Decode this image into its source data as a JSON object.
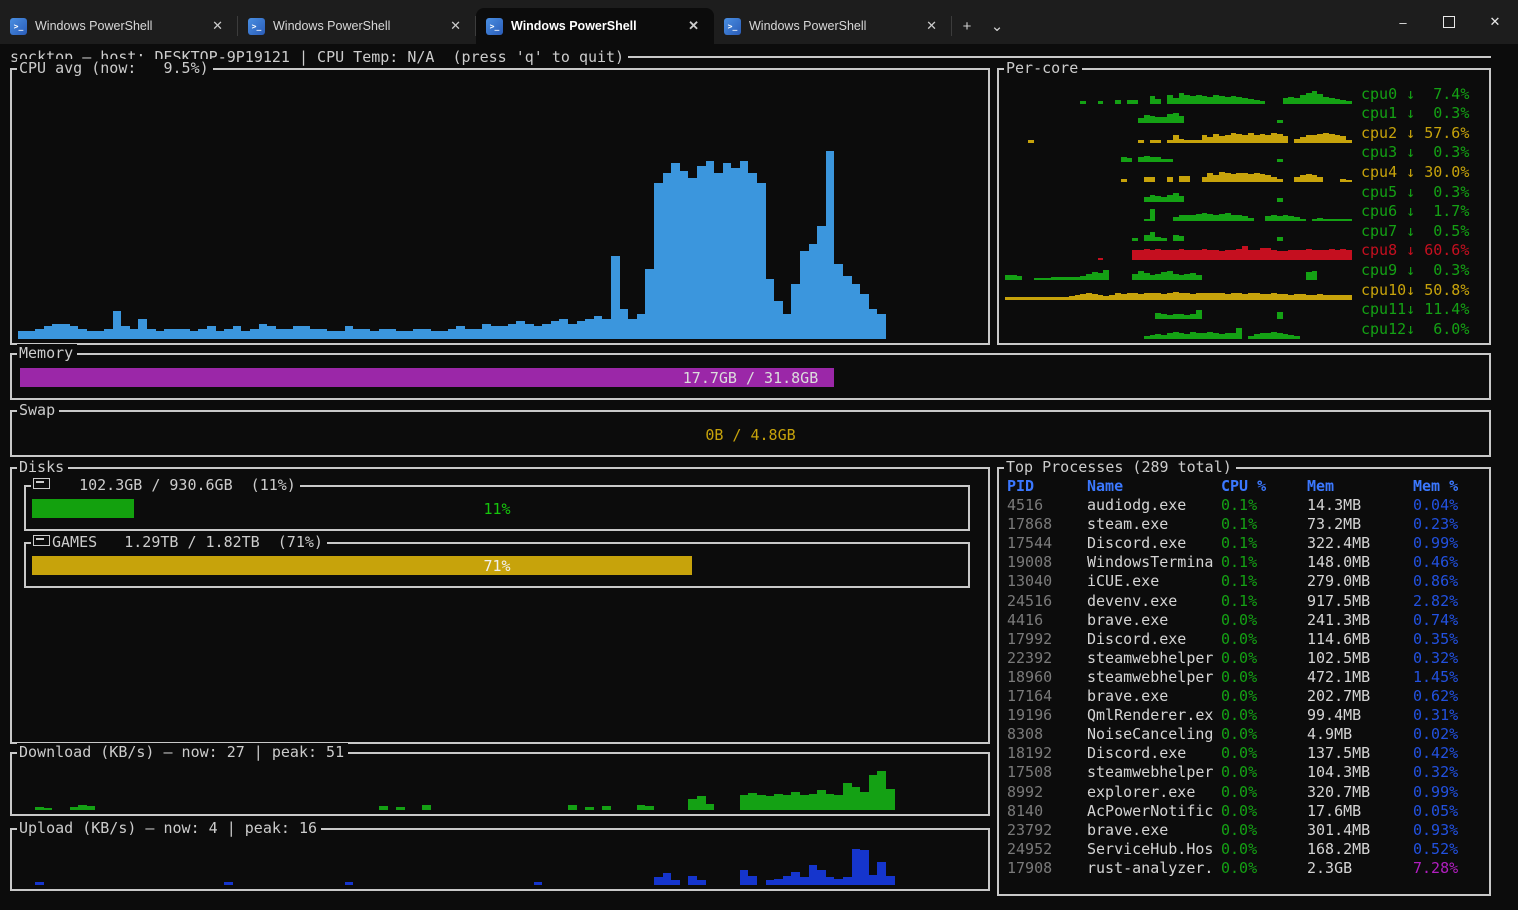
{
  "colors": {
    "frame": "#c9c9c9",
    "text": "#cccccc",
    "green": "#14a114",
    "yellow": "#c7a30b",
    "red": "#c50f1f",
    "cpu_blue": "#3b96dd",
    "upload_blue": "#1535cd",
    "header_blue": "#3b78ff",
    "memp_blue": "#2251e0",
    "magenta": "#b21fc0",
    "pid_gray": "#7a7a7a",
    "name_white": "#d4d4d4",
    "purple": "#9b27a8",
    "bright_green": "#16c60c",
    "white": "#f0f0f0"
  },
  "window": {
    "icons": {
      "minimize": "–",
      "close": "✕",
      "new_tab": "+",
      "dropdown": "⌄",
      "tab_close": "✕",
      "ps_glyph": ">_"
    }
  },
  "tabs": [
    {
      "label": "Windows PowerShell",
      "active": false
    },
    {
      "label": "Windows PowerShell",
      "active": false
    },
    {
      "label": "Windows PowerShell",
      "active": true
    },
    {
      "label": "Windows PowerShell",
      "active": false
    }
  ],
  "header": {
    "text": "socktop — host: DESKTOP-9P19121 | CPU Temp: N/A  (press 'q' to quit)"
  },
  "cpu_avg": {
    "title": "CPU avg (now:   9.5%)",
    "color": "#3b96dd",
    "max": 100,
    "slots": 112,
    "min": 2.2,
    "align": "left",
    "values": [
      3,
      3,
      4,
      5,
      6,
      6,
      5,
      4,
      3,
      3,
      4,
      11,
      5,
      4,
      8,
      4,
      3,
      4,
      4,
      4,
      3,
      4,
      5,
      3,
      4,
      5,
      3,
      4,
      6,
      5,
      4,
      4,
      5,
      5,
      4,
      4,
      3,
      3,
      5,
      4,
      4,
      3,
      4,
      4,
      3,
      3,
      4,
      4,
      3,
      3,
      4,
      5,
      4,
      4,
      6,
      5,
      5,
      6,
      7,
      6,
      5,
      6,
      7,
      8,
      6,
      7,
      8,
      9,
      8,
      33,
      12,
      8,
      10,
      28,
      62,
      66,
      70,
      67,
      64,
      69,
      71,
      66,
      70,
      68,
      71,
      66,
      62,
      24,
      15,
      10,
      22,
      35,
      38,
      45,
      75,
      30,
      25,
      22,
      18,
      12,
      10,
      0,
      0,
      0,
      0,
      0,
      0,
      0,
      0,
      0,
      0,
      0
    ]
  },
  "percore": {
    "title": "Per-core",
    "cores": [
      {
        "label": "cpu0 ↓  7.4%",
        "color": "green",
        "values": [
          0,
          14,
          0,
          0,
          12,
          0,
          0,
          18,
          0,
          16,
          16,
          0,
          0,
          38,
          22,
          0,
          45,
          30,
          55,
          42,
          38,
          45,
          40,
          36,
          42,
          38,
          34,
          40,
          36,
          30,
          26,
          20,
          14,
          0,
          0,
          0,
          30,
          36,
          30,
          44,
          55,
          62,
          48,
          36,
          30,
          24,
          18,
          14
        ]
      },
      {
        "label": "cpu1 ↓  0.3%",
        "color": "green",
        "values": [
          0,
          0,
          0,
          0,
          0,
          0,
          0,
          0,
          0,
          0,
          0,
          0,
          0,
          0,
          0,
          0,
          0,
          0,
          0,
          0,
          0,
          0,
          0,
          25,
          42,
          35,
          30,
          30,
          48,
          52,
          38,
          0,
          0,
          0,
          0,
          0,
          0,
          0,
          0,
          0,
          0,
          0,
          0,
          0,
          0,
          0,
          0,
          18,
          0,
          0,
          0,
          0,
          0,
          0,
          0,
          0,
          0,
          0,
          0,
          0
        ]
      },
      {
        "label": "cpu2 ↓ 57.6%",
        "color": "yellow",
        "values": [
          10,
          0,
          0,
          0,
          0,
          0,
          0,
          0,
          0,
          0,
          0,
          0,
          0,
          0,
          0,
          0,
          0,
          0,
          0,
          14,
          0,
          12,
          12,
          0,
          14,
          38,
          22,
          16,
          12,
          12,
          40,
          28,
          45,
          36,
          42,
          50,
          44,
          38,
          48,
          42,
          45,
          40,
          50,
          44,
          34,
          0,
          22,
          30,
          38,
          42,
          46,
          50,
          45,
          40,
          36,
          14
        ]
      },
      {
        "label": "cpu3 ↓  0.3%",
        "color": "green",
        "values": [
          0,
          0,
          0,
          0,
          0,
          0,
          0,
          0,
          0,
          0,
          0,
          0,
          0,
          0,
          0,
          0,
          0,
          0,
          0,
          0,
          30,
          22,
          0,
          26,
          32,
          30,
          26,
          20,
          16,
          0,
          0,
          0,
          0,
          0,
          0,
          0,
          0,
          0,
          0,
          0,
          0,
          0,
          0,
          0,
          0,
          0,
          0,
          16,
          0,
          0,
          0,
          0,
          0,
          0,
          0,
          0,
          0,
          0,
          0,
          0
        ]
      },
      {
        "label": "cpu4 ↓ 30.0%",
        "color": "yellow",
        "values": [
          0,
          16,
          0,
          0,
          0,
          28,
          28,
          0,
          0,
          24,
          0,
          32,
          32,
          0,
          0,
          28,
          44,
          38,
          50,
          44,
          40,
          46,
          44,
          40,
          44,
          40,
          36,
          28,
          14,
          0,
          0,
          24,
          34,
          40,
          36,
          28,
          0,
          0,
          0,
          18,
          10
        ]
      },
      {
        "label": "cpu5 ↓  0.3%",
        "color": "green",
        "values": [
          0,
          0,
          0,
          0,
          0,
          0,
          0,
          0,
          0,
          0,
          0,
          0,
          0,
          0,
          0,
          0,
          0,
          0,
          0,
          0,
          0,
          0,
          0,
          0,
          26,
          36,
          30,
          26,
          36,
          42,
          30,
          0,
          0,
          0,
          0,
          0,
          0,
          0,
          0,
          0,
          0,
          0,
          0,
          0,
          0,
          0,
          0,
          18,
          0,
          0,
          0,
          0,
          0,
          0,
          0,
          0,
          0,
          0,
          0,
          0
        ]
      },
      {
        "label": "cpu6 ↓  1.7%",
        "color": "green",
        "values": [
          14,
          62,
          0,
          0,
          0,
          22,
          30,
          34,
          30,
          36,
          40,
          36,
          34,
          38,
          40,
          34,
          30,
          26,
          16,
          0,
          0,
          26,
          30,
          28,
          30,
          26,
          20,
          14,
          0,
          12,
          16,
          12,
          10,
          14,
          12,
          10
        ]
      },
      {
        "label": "cpu7 ↓  0.5%",
        "color": "green",
        "values": [
          0,
          0,
          0,
          0,
          0,
          0,
          0,
          0,
          0,
          0,
          0,
          0,
          0,
          0,
          0,
          0,
          0,
          0,
          0,
          0,
          0,
          0,
          14,
          0,
          30,
          44,
          22,
          14,
          0,
          32,
          26,
          0,
          0,
          0,
          0,
          0,
          0,
          0,
          0,
          0,
          0,
          0,
          0,
          0,
          0,
          0,
          0,
          18,
          0,
          0,
          0,
          0,
          0,
          0,
          0,
          0,
          0,
          0,
          0,
          0
        ]
      },
      {
        "label": "cpu8 ↓ 60.6%",
        "color": "red",
        "values": [
          12,
          0,
          0,
          0,
          0,
          0,
          52,
          56,
          60,
          56,
          58,
          54,
          52,
          56,
          60,
          55,
          52,
          56,
          58,
          54,
          52,
          50,
          56,
          52,
          58,
          72,
          56,
          52,
          62,
          66,
          56,
          50,
          46,
          56,
          52,
          55,
          58,
          54,
          56,
          52,
          58,
          55,
          60,
          56
        ]
      },
      {
        "label": "cpu9 ↓  0.3%",
        "color": "green",
        "values": [
          26,
          26,
          22,
          0,
          0,
          12,
          12,
          12,
          14,
          14,
          14,
          16,
          16,
          22,
          32,
          42,
          35,
          52,
          0,
          0,
          0,
          0,
          30,
          46,
          36,
          26,
          30,
          42,
          46,
          30,
          26,
          32,
          36,
          28,
          0,
          0,
          0,
          0,
          0,
          0,
          0,
          0,
          0,
          0,
          0,
          0,
          0,
          0,
          0,
          0,
          0,
          0,
          42,
          48,
          0,
          0,
          0,
          0,
          0,
          0
        ]
      },
      {
        "label": "cpu10↓ 50.8%",
        "color": "yellow",
        "values": [
          8,
          8,
          9,
          10,
          9,
          9,
          10,
          11,
          10,
          12,
          14,
          18,
          22,
          28,
          34,
          30,
          24,
          20,
          26,
          34,
          30,
          32,
          34,
          30,
          36,
          32,
          34,
          30,
          34,
          38,
          32,
          34,
          30,
          32,
          36,
          32,
          34,
          32,
          30,
          34,
          32,
          30,
          36,
          34,
          30,
          28,
          32,
          30,
          28,
          26,
          30,
          28,
          26,
          24,
          28,
          26,
          24,
          22,
          26,
          24
        ]
      },
      {
        "label": "cpu11↓ 11.4%",
        "color": "green",
        "values": [
          0,
          0,
          0,
          0,
          0,
          0,
          0,
          0,
          0,
          0,
          0,
          0,
          0,
          0,
          0,
          0,
          0,
          0,
          0,
          0,
          0,
          0,
          0,
          0,
          0,
          0,
          30,
          26,
          20,
          28,
          26,
          22,
          28,
          46,
          0,
          0,
          0,
          0,
          0,
          0,
          0,
          0,
          0,
          0,
          0,
          0,
          0,
          36,
          0,
          0,
          0,
          0,
          0,
          0,
          0,
          0,
          0,
          0,
          0,
          0
        ]
      },
      {
        "label": "cpu12↓  6.0%",
        "color": "green",
        "values": [
          0,
          0,
          16,
          20,
          26,
          22,
          28,
          35,
          30,
          26,
          36,
          30,
          28,
          34,
          30,
          26,
          30,
          28,
          56,
          0,
          14,
          26,
          30,
          28,
          34,
          30,
          26,
          20,
          14,
          0,
          0,
          0,
          0,
          0,
          0,
          0,
          0,
          0
        ]
      }
    ]
  },
  "memory": {
    "title": "Memory",
    "label": "17.7GB / 31.8GB",
    "fill_pct": 55.7,
    "fill_color": "#9b27a8",
    "label_color": "#dcdcdc"
  },
  "swap": {
    "title": "Swap",
    "label": "0B / 4.8GB",
    "fill_pct": 0,
    "fill_color": "#c7a30b",
    "label_color": "#c7a30b"
  },
  "disks": {
    "title": "Disks",
    "items": [
      {
        "title": "   102.3GB / 930.6GB  (11%)",
        "pct": 11,
        "pct_label": "11%",
        "fill_color": "#13a10e",
        "label_color": "#16c60c"
      },
      {
        "title": "GAMES   1.29TB / 1.82TB  (71%)",
        "pct": 71,
        "pct_label": "71%",
        "fill_color": "#c7a30b",
        "label_color": "#f0f0f0"
      }
    ]
  },
  "download": {
    "title": "Download (KB/s) — now: 27 | peak: 51",
    "color": "#14a114",
    "max": 55,
    "slots": 112,
    "min": 5,
    "align": "left",
    "values": [
      0,
      0,
      4,
      3,
      0,
      0,
      4,
      7,
      5,
      0,
      0,
      0,
      0,
      0,
      0,
      0,
      0,
      0,
      0,
      0,
      0,
      0,
      0,
      0,
      0,
      0,
      0,
      0,
      0,
      0,
      0,
      0,
      0,
      0,
      0,
      0,
      0,
      0,
      0,
      0,
      0,
      0,
      5,
      0,
      4,
      0,
      0,
      6,
      0,
      0,
      0,
      0,
      0,
      0,
      0,
      0,
      0,
      0,
      0,
      0,
      0,
      0,
      0,
      0,
      6,
      0,
      4,
      0,
      5,
      0,
      0,
      0,
      7,
      5,
      0,
      0,
      0,
      0,
      14,
      18,
      8,
      0,
      0,
      0,
      20,
      22,
      20,
      19,
      21,
      20,
      24,
      20,
      21,
      26,
      21,
      20,
      36,
      30,
      24,
      46,
      51,
      27,
      0,
      0,
      0,
      0,
      0,
      0,
      0,
      0,
      0,
      0
    ]
  },
  "upload": {
    "title": "Upload (KB/s) — now: 4 | peak: 16",
    "color": "#1535cd",
    "max": 16,
    "slots": 112,
    "min": 5,
    "align": "left",
    "values": [
      0,
      0,
      1.2,
      0,
      0,
      0,
      0,
      0,
      0,
      0,
      0,
      0,
      0,
      0,
      0,
      0,
      0,
      0,
      0,
      0,
      0,
      0,
      0,
      0,
      1.2,
      0,
      0,
      0,
      0,
      0,
      0,
      0,
      0,
      0,
      0,
      0,
      0,
      0,
      1.2,
      0,
      0,
      0,
      0,
      0,
      0,
      0,
      0,
      0,
      0,
      0,
      0,
      0,
      0,
      0,
      0,
      0,
      0,
      0,
      0,
      0,
      1.2,
      0,
      0,
      0,
      0,
      0,
      0,
      0,
      0,
      0,
      0,
      0,
      0,
      0,
      3,
      4.5,
      2,
      0,
      3.5,
      2,
      0,
      0,
      0,
      0,
      6,
      3.5,
      0,
      2,
      2.5,
      3.5,
      5,
      3,
      8,
      6,
      3,
      2.5,
      3,
      14,
      13.5,
      4,
      9,
      3.5,
      0,
      0,
      0,
      0,
      0,
      0,
      0,
      0,
      0,
      0
    ]
  },
  "processes": {
    "title": "Top Processes (289 total)",
    "columns": [
      "PID",
      "Name",
      "CPU %",
      "Mem",
      "Mem %"
    ],
    "rows": [
      {
        "pid": "4516",
        "name": "audiodg.exe",
        "cpu": "0.1%",
        "mem": "14.3MB",
        "memp": "0.04%",
        "hot": false
      },
      {
        "pid": "17868",
        "name": "steam.exe",
        "cpu": "0.1%",
        "mem": "73.2MB",
        "memp": "0.23%",
        "hot": false
      },
      {
        "pid": "17544",
        "name": "Discord.exe",
        "cpu": "0.1%",
        "mem": "322.4MB",
        "memp": "0.99%",
        "hot": false
      },
      {
        "pid": "19008",
        "name": "WindowsTermina",
        "cpu": "0.1%",
        "mem": "148.0MB",
        "memp": "0.46%",
        "hot": false
      },
      {
        "pid": "13040",
        "name": "iCUE.exe",
        "cpu": "0.1%",
        "mem": "279.0MB",
        "memp": "0.86%",
        "hot": false
      },
      {
        "pid": "24516",
        "name": "devenv.exe",
        "cpu": "0.1%",
        "mem": "917.5MB",
        "memp": "2.82%",
        "hot": false
      },
      {
        "pid": "4416",
        "name": "brave.exe",
        "cpu": "0.0%",
        "mem": "241.3MB",
        "memp": "0.74%",
        "hot": false
      },
      {
        "pid": "17992",
        "name": "Discord.exe",
        "cpu": "0.0%",
        "mem": "114.6MB",
        "memp": "0.35%",
        "hot": false
      },
      {
        "pid": "22392",
        "name": "steamwebhelper",
        "cpu": "0.0%",
        "mem": "102.5MB",
        "memp": "0.32%",
        "hot": false
      },
      {
        "pid": "18960",
        "name": "steamwebhelper",
        "cpu": "0.0%",
        "mem": "472.1MB",
        "memp": "1.45%",
        "hot": false
      },
      {
        "pid": "17164",
        "name": "brave.exe",
        "cpu": "0.0%",
        "mem": "202.7MB",
        "memp": "0.62%",
        "hot": false
      },
      {
        "pid": "19196",
        "name": "QmlRenderer.ex",
        "cpu": "0.0%",
        "mem": "99.4MB",
        "memp": "0.31%",
        "hot": false
      },
      {
        "pid": "8308",
        "name": "NoiseCanceling",
        "cpu": "0.0%",
        "mem": "4.9MB",
        "memp": "0.02%",
        "hot": false
      },
      {
        "pid": "18192",
        "name": "Discord.exe",
        "cpu": "0.0%",
        "mem": "137.5MB",
        "memp": "0.42%",
        "hot": false
      },
      {
        "pid": "17508",
        "name": "steamwebhelper",
        "cpu": "0.0%",
        "mem": "104.3MB",
        "memp": "0.32%",
        "hot": false
      },
      {
        "pid": "8992",
        "name": "explorer.exe",
        "cpu": "0.0%",
        "mem": "320.7MB",
        "memp": "0.99%",
        "hot": false
      },
      {
        "pid": "8140",
        "name": "AcPowerNotific",
        "cpu": "0.0%",
        "mem": "17.6MB",
        "memp": "0.05%",
        "hot": false
      },
      {
        "pid": "23792",
        "name": "brave.exe",
        "cpu": "0.0%",
        "mem": "301.4MB",
        "memp": "0.93%",
        "hot": false
      },
      {
        "pid": "24952",
        "name": "ServiceHub.Hos",
        "cpu": "0.0%",
        "mem": "168.2MB",
        "memp": "0.52%",
        "hot": false
      },
      {
        "pid": "17908",
        "name": "rust-analyzer.",
        "cpu": "0.0%",
        "mem": "2.3GB",
        "memp": "7.28%",
        "hot": true
      }
    ]
  }
}
